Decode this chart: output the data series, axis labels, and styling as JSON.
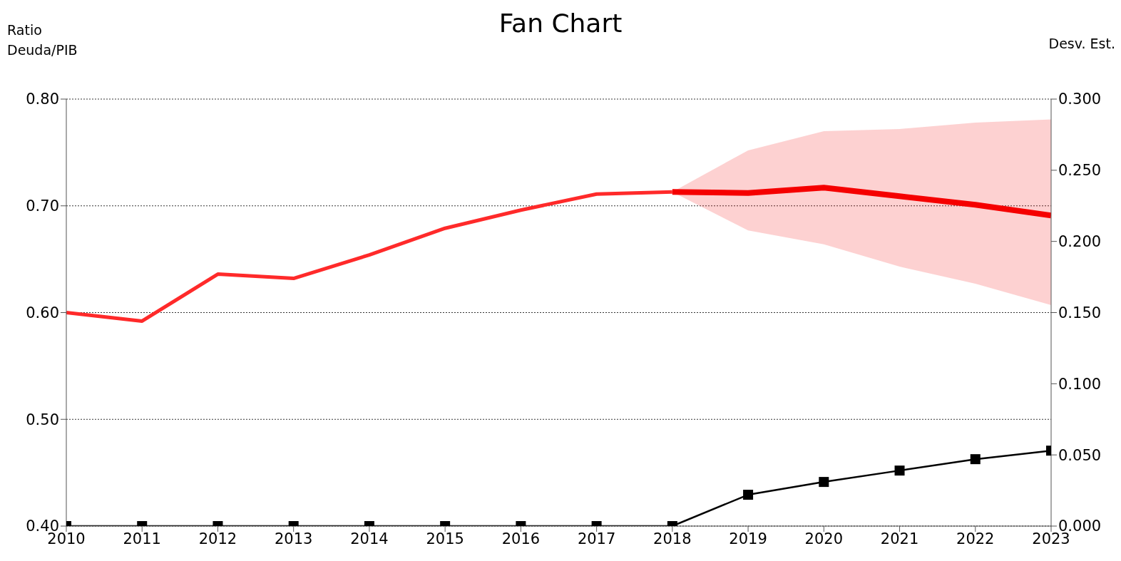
{
  "chart_data": {
    "type": "line",
    "title": "Fan Chart",
    "ylabel": "Ratio Deuda/PIB",
    "y2label": "Desv. Est.",
    "x": [
      2010,
      2011,
      2012,
      2013,
      2014,
      2015,
      2016,
      2017,
      2018,
      2019,
      2020,
      2021,
      2022,
      2023
    ],
    "xlim": [
      2010,
      2023
    ],
    "xticks": [
      2010,
      2011,
      2012,
      2013,
      2014,
      2015,
      2016,
      2017,
      2018,
      2019,
      2020,
      2021,
      2022,
      2023
    ],
    "ylim": [
      0.4,
      0.8
    ],
    "yticks": [
      {
        "value": 0.4,
        "label": "0.40"
      },
      {
        "value": 0.5,
        "label": "0.50"
      },
      {
        "value": 0.6,
        "label": "0.60"
      },
      {
        "value": 0.7,
        "label": "0.70"
      },
      {
        "value": 0.8,
        "label": "0.80"
      }
    ],
    "y2lim": [
      0,
      0.3
    ],
    "y2ticks": [
      {
        "value": 0,
        "label": "0.000"
      },
      {
        "value": 0.05,
        "label": "0.050"
      },
      {
        "value": 0.1,
        "label": "0.100"
      },
      {
        "value": 0.15,
        "label": "0.150"
      },
      {
        "value": 0.2,
        "label": "0.200"
      },
      {
        "value": 0.25,
        "label": "0.250"
      },
      {
        "value": 0.3,
        "label": "0.300"
      }
    ],
    "grid": "y",
    "series": [
      {
        "color": "#f50000",
        "marker": "none",
        "values": [
          null,
          null,
          null,
          null,
          null,
          null,
          null,
          null,
          0.713,
          0.712,
          0.717,
          0.709,
          0.701,
          0.691
        ],
        "lower": [
          null,
          null,
          null,
          null,
          null,
          null,
          null,
          null,
          0.713,
          0.677,
          0.664,
          0.643,
          0.627,
          0.607
        ],
        "upper": [
          null,
          null,
          null,
          null,
          null,
          null,
          null,
          null,
          0.713,
          0.752,
          0.77,
          0.772,
          0.778,
          0.781
        ]
      },
      {
        "color": "#ff2a2a",
        "marker": "none",
        "values": [
          0.6,
          0.592,
          0.636,
          0.632,
          0.654,
          0.679,
          0.696,
          0.711,
          0.713,
          null,
          null,
          null,
          null,
          null
        ]
      },
      {
        "color": "#000000",
        "marker": "square",
        "axis": "y2",
        "values": [
          0,
          0,
          0,
          0,
          0,
          0,
          0,
          0,
          0,
          0.022,
          0.031,
          0.039,
          0.047,
          0.053
        ]
      }
    ]
  }
}
